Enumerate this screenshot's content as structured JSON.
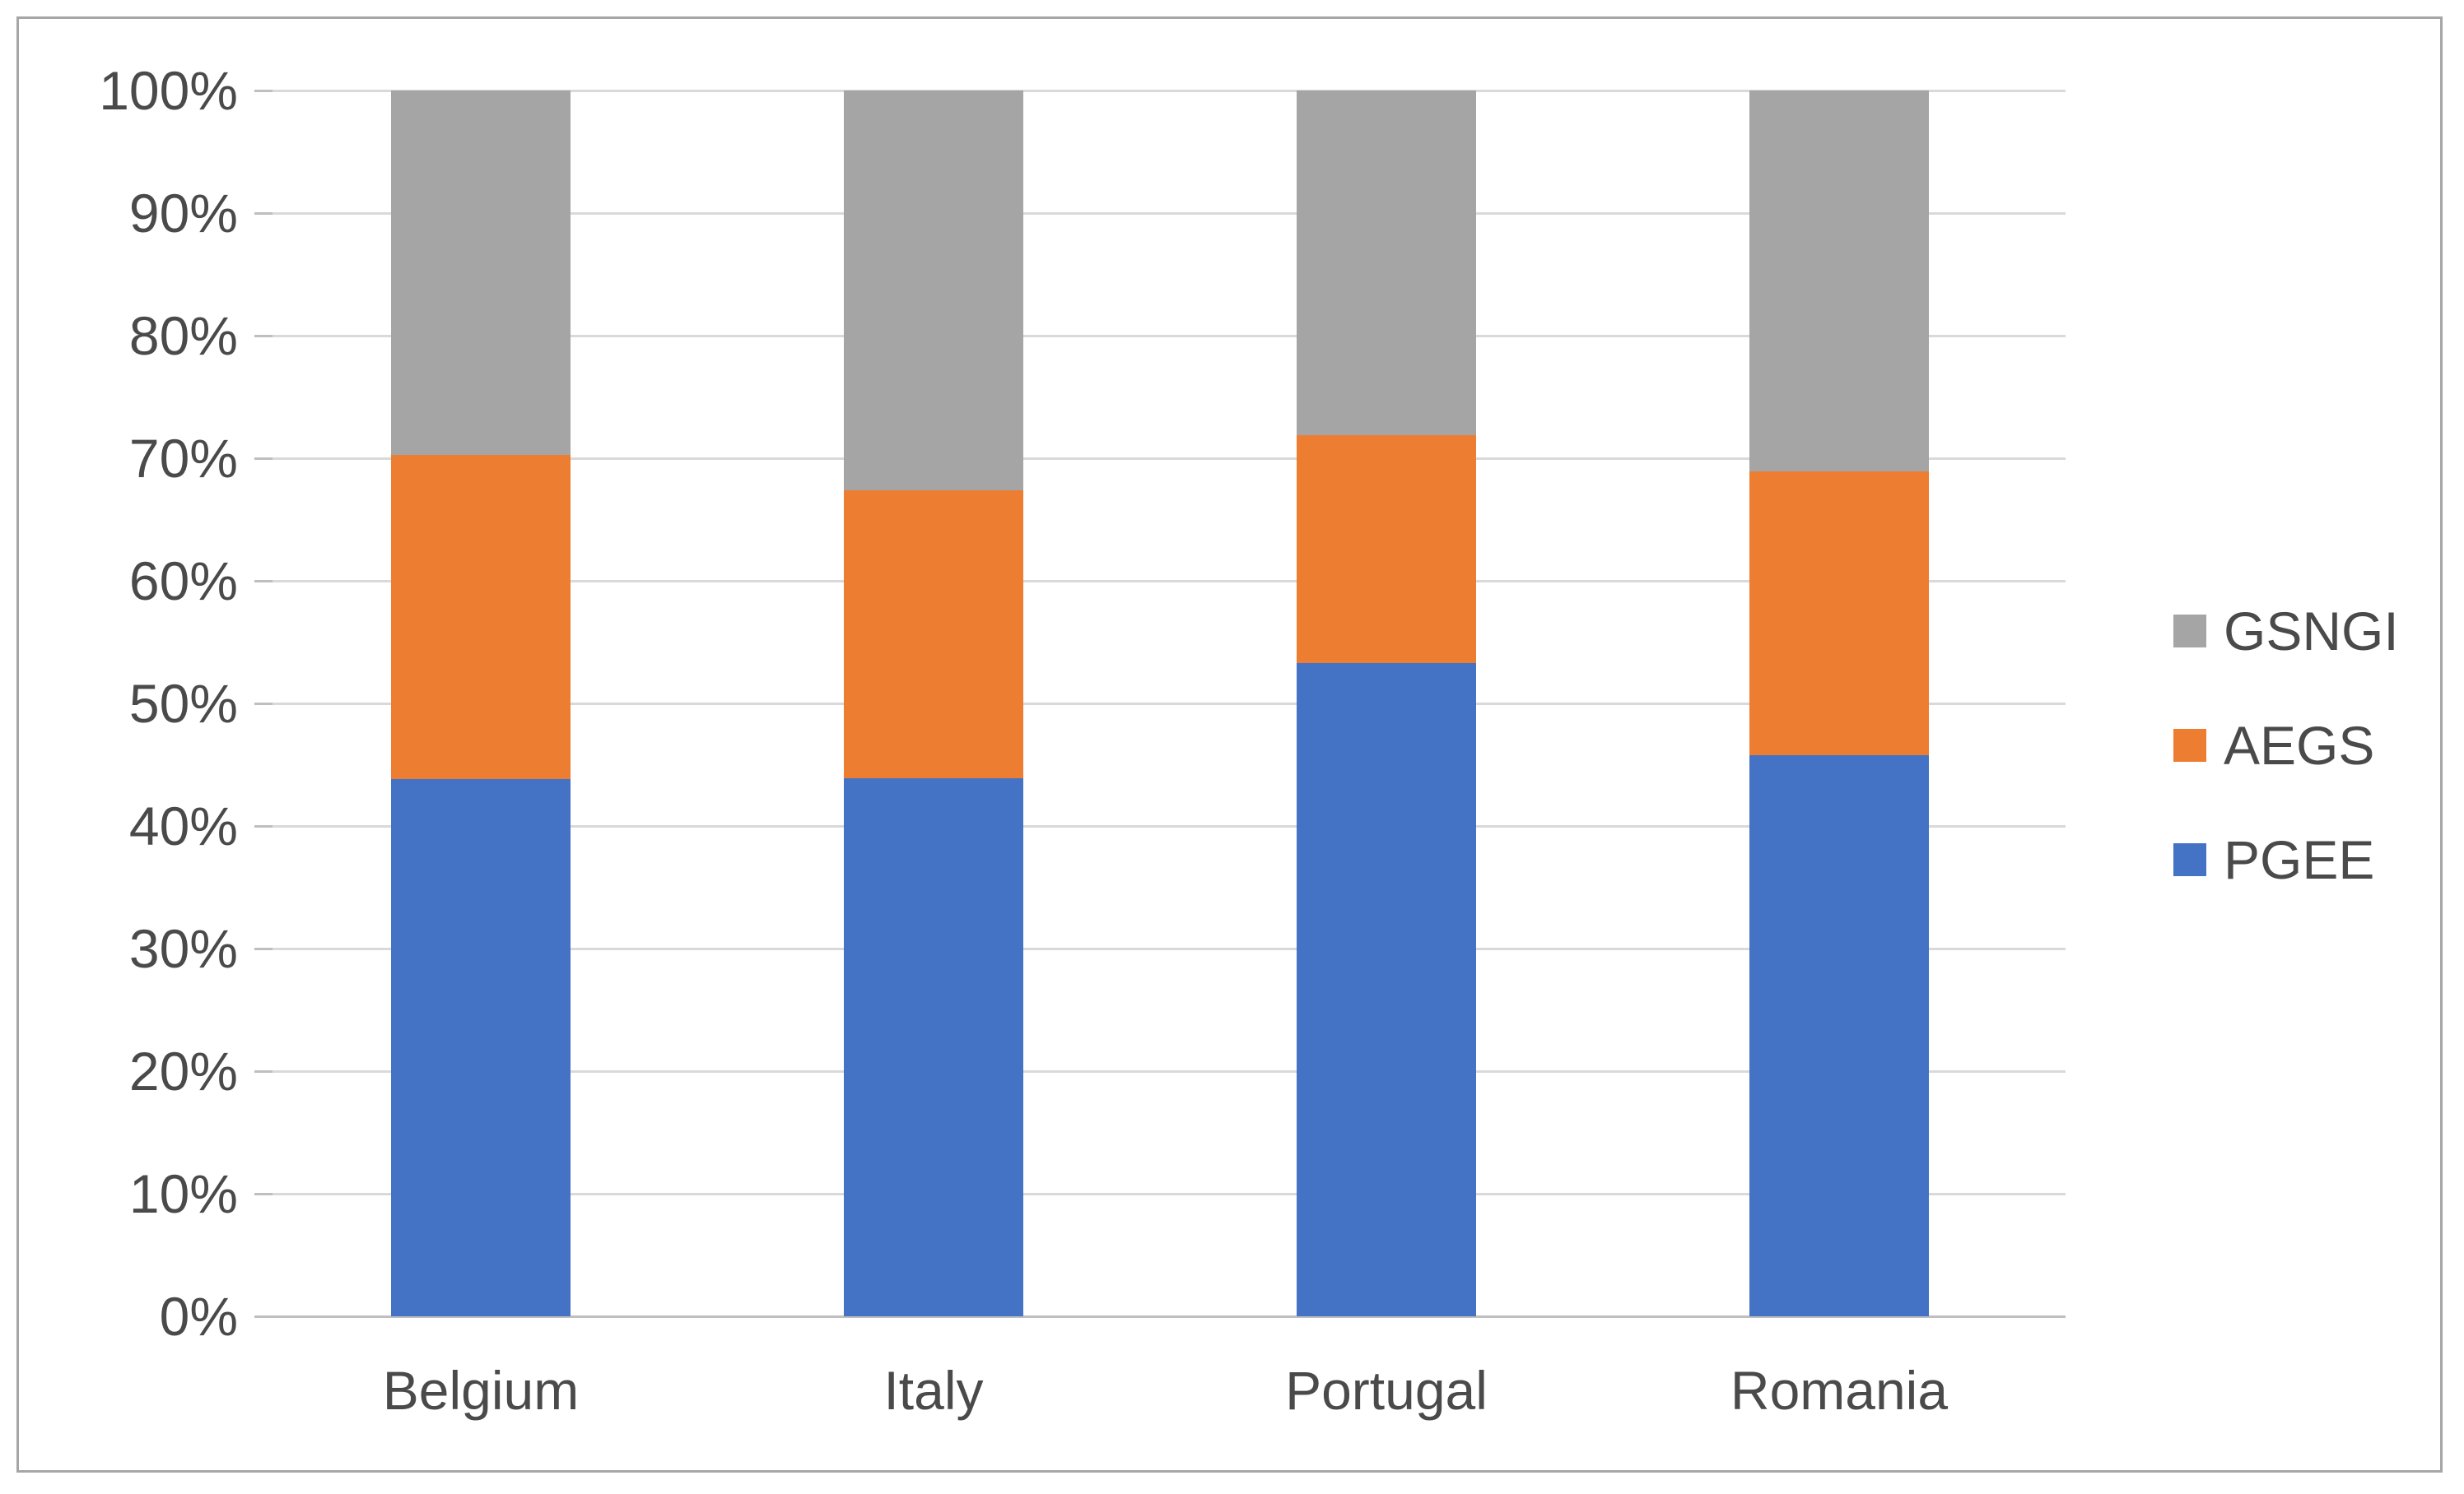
{
  "chart_data": {
    "type": "bar",
    "subtype": "stacked-100-percent-column",
    "title": "",
    "xlabel": "",
    "ylabel": "",
    "categories": [
      "Belgium",
      "Italy",
      "Portugal",
      "Romania"
    ],
    "series": [
      {
        "name": "PGEE",
        "color": "#4472C4",
        "values": [
          43.8,
          43.9,
          53.3,
          45.8
        ]
      },
      {
        "name": "AEGS",
        "color": "#ED7D31",
        "values": [
          26.5,
          23.5,
          18.6,
          23.1
        ]
      },
      {
        "name": "GSNGI",
        "color": "#A5A5A5",
        "values": [
          29.7,
          32.6,
          28.1,
          31.1
        ]
      }
    ],
    "stack_order_bottom_to_top": [
      "PGEE",
      "AEGS",
      "GSNGI"
    ],
    "y_axis": {
      "min": 0,
      "max": 100,
      "step": 10,
      "tick_labels": [
        "0%",
        "10%",
        "20%",
        "30%",
        "40%",
        "50%",
        "60%",
        "70%",
        "80%",
        "90%",
        "100%"
      ]
    },
    "grid": true,
    "legend": {
      "position": "right",
      "items_top_to_bottom": [
        "GSNGI",
        "AEGS",
        "PGEE"
      ]
    }
  },
  "colors": {
    "background": "#FFFFFF",
    "frame_border": "#A6A6A6",
    "gridline": "#D9D9D9",
    "axis_line": "#BFBFBF",
    "text": "#4A4A4A"
  }
}
